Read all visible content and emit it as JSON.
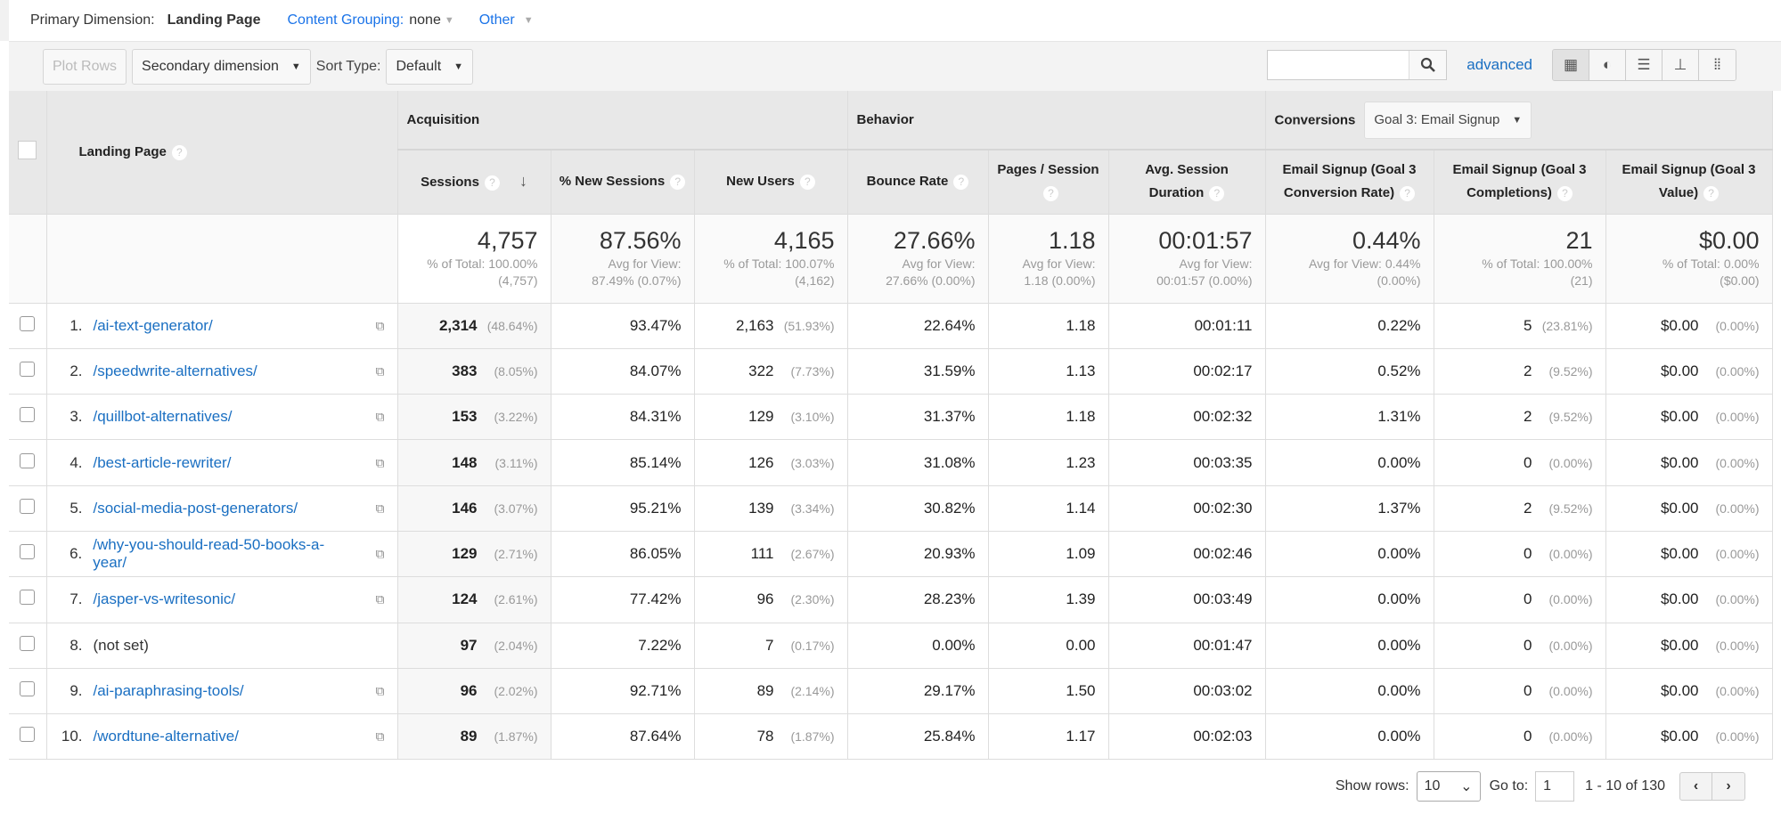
{
  "dims": {
    "primary_label": "Primary Dimension:",
    "primary_value": "Landing Page",
    "content_grouping_label": "Content Grouping:",
    "content_grouping_value": "none",
    "other_label": "Other"
  },
  "toolbar": {
    "plot_rows": "Plot Rows",
    "secondary_dimension": "Secondary dimension",
    "sort_type_label": "Sort Type:",
    "sort_type_value": "Default",
    "search_value": "",
    "advanced": "advanced"
  },
  "header": {
    "landing_page": "Landing Page",
    "acquisition": "Acquisition",
    "behavior": "Behavior",
    "conversions": "Conversions",
    "goal_select": "Goal 3: Email Signup",
    "cols": [
      "Sessions",
      "% New Sessions",
      "New Users",
      "Bounce Rate",
      "Pages / Session",
      "Avg. Session Duration",
      "Email Signup (Goal 3 Conversion Rate)",
      "Email Signup (Goal 3 Completions)",
      "Email Signup (Goal 3 Value)"
    ]
  },
  "totals": [
    {
      "value": "4,757",
      "sub1": "% of Total: 100.00%",
      "sub2": "(4,757)"
    },
    {
      "value": "87.56%",
      "sub1": "Avg for View:",
      "sub2": "87.49% (0.07%)"
    },
    {
      "value": "4,165",
      "sub1": "% of Total: 100.07%",
      "sub2": "(4,162)"
    },
    {
      "value": "27.66%",
      "sub1": "Avg for View:",
      "sub2": "27.66% (0.00%)"
    },
    {
      "value": "1.18",
      "sub1": "Avg for View:",
      "sub2": "1.18 (0.00%)"
    },
    {
      "value": "00:01:57",
      "sub1": "Avg for View:",
      "sub2": "00:01:57 (0.00%)"
    },
    {
      "value": "0.44%",
      "sub1": "Avg for View: 0.44%",
      "sub2": "(0.00%)"
    },
    {
      "value": "21",
      "sub1": "% of Total: 100.00%",
      "sub2": "(21)"
    },
    {
      "value": "$0.00",
      "sub1": "% of Total: 0.00%",
      "sub2": "($0.00)"
    }
  ],
  "rows": [
    {
      "n": "1.",
      "page": "/ai-text-generator/",
      "sessions": "2,314",
      "sessions_pct": "(48.64%)",
      "new_sessions": "93.47%",
      "new_users": "2,163",
      "new_users_pct": "(51.93%)",
      "bounce": "22.64%",
      "pages": "1.18",
      "duration": "00:01:11",
      "conv_rate": "0.22%",
      "completions": "5",
      "completions_pct": "(23.81%)",
      "value": "$0.00",
      "value_pct": "(0.00%)"
    },
    {
      "n": "2.",
      "page": "/speedwrite-alternatives/",
      "sessions": "383",
      "sessions_pct": "(8.05%)",
      "new_sessions": "84.07%",
      "new_users": "322",
      "new_users_pct": "(7.73%)",
      "bounce": "31.59%",
      "pages": "1.13",
      "duration": "00:02:17",
      "conv_rate": "0.52%",
      "completions": "2",
      "completions_pct": "(9.52%)",
      "value": "$0.00",
      "value_pct": "(0.00%)"
    },
    {
      "n": "3.",
      "page": "/quillbot-alternatives/",
      "sessions": "153",
      "sessions_pct": "(3.22%)",
      "new_sessions": "84.31%",
      "new_users": "129",
      "new_users_pct": "(3.10%)",
      "bounce": "31.37%",
      "pages": "1.18",
      "duration": "00:02:32",
      "conv_rate": "1.31%",
      "completions": "2",
      "completions_pct": "(9.52%)",
      "value": "$0.00",
      "value_pct": "(0.00%)"
    },
    {
      "n": "4.",
      "page": "/best-article-rewriter/",
      "sessions": "148",
      "sessions_pct": "(3.11%)",
      "new_sessions": "85.14%",
      "new_users": "126",
      "new_users_pct": "(3.03%)",
      "bounce": "31.08%",
      "pages": "1.23",
      "duration": "00:03:35",
      "conv_rate": "0.00%",
      "completions": "0",
      "completions_pct": "(0.00%)",
      "value": "$0.00",
      "value_pct": "(0.00%)"
    },
    {
      "n": "5.",
      "page": "/social-media-post-generators/",
      "sessions": "146",
      "sessions_pct": "(3.07%)",
      "new_sessions": "95.21%",
      "new_users": "139",
      "new_users_pct": "(3.34%)",
      "bounce": "30.82%",
      "pages": "1.14",
      "duration": "00:02:30",
      "conv_rate": "1.37%",
      "completions": "2",
      "completions_pct": "(9.52%)",
      "value": "$0.00",
      "value_pct": "(0.00%)"
    },
    {
      "n": "6.",
      "page": "/why-you-should-read-50-books-a-year/",
      "sessions": "129",
      "sessions_pct": "(2.71%)",
      "new_sessions": "86.05%",
      "new_users": "111",
      "new_users_pct": "(2.67%)",
      "bounce": "20.93%",
      "pages": "1.09",
      "duration": "00:02:46",
      "conv_rate": "0.00%",
      "completions": "0",
      "completions_pct": "(0.00%)",
      "value": "$0.00",
      "value_pct": "(0.00%)"
    },
    {
      "n": "7.",
      "page": "/jasper-vs-writesonic/",
      "sessions": "124",
      "sessions_pct": "(2.61%)",
      "new_sessions": "77.42%",
      "new_users": "96",
      "new_users_pct": "(2.30%)",
      "bounce": "28.23%",
      "pages": "1.39",
      "duration": "00:03:49",
      "conv_rate": "0.00%",
      "completions": "0",
      "completions_pct": "(0.00%)",
      "value": "$0.00",
      "value_pct": "(0.00%)"
    },
    {
      "n": "8.",
      "page": "(not set)",
      "sessions": "97",
      "sessions_pct": "(2.04%)",
      "new_sessions": "7.22%",
      "new_users": "7",
      "new_users_pct": "(0.17%)",
      "bounce": "0.00%",
      "pages": "0.00",
      "duration": "00:01:47",
      "conv_rate": "0.00%",
      "completions": "0",
      "completions_pct": "(0.00%)",
      "value": "$0.00",
      "value_pct": "(0.00%)"
    },
    {
      "n": "9.",
      "page": "/ai-paraphrasing-tools/",
      "sessions": "96",
      "sessions_pct": "(2.02%)",
      "new_sessions": "92.71%",
      "new_users": "89",
      "new_users_pct": "(2.14%)",
      "bounce": "29.17%",
      "pages": "1.50",
      "duration": "00:03:02",
      "conv_rate": "0.00%",
      "completions": "0",
      "completions_pct": "(0.00%)",
      "value": "$0.00",
      "value_pct": "(0.00%)"
    },
    {
      "n": "10.",
      "page": "/wordtune-alternative/",
      "sessions": "89",
      "sessions_pct": "(1.87%)",
      "new_sessions": "87.64%",
      "new_users": "78",
      "new_users_pct": "(1.87%)",
      "bounce": "25.84%",
      "pages": "1.17",
      "duration": "00:02:03",
      "conv_rate": "0.00%",
      "completions": "0",
      "completions_pct": "(0.00%)",
      "value": "$0.00",
      "value_pct": "(0.00%)"
    }
  ],
  "footer": {
    "show_rows_label": "Show rows:",
    "show_rows_value": "10",
    "goto_label": "Go to:",
    "goto_value": "1",
    "range": "1 - 10 of 130"
  }
}
